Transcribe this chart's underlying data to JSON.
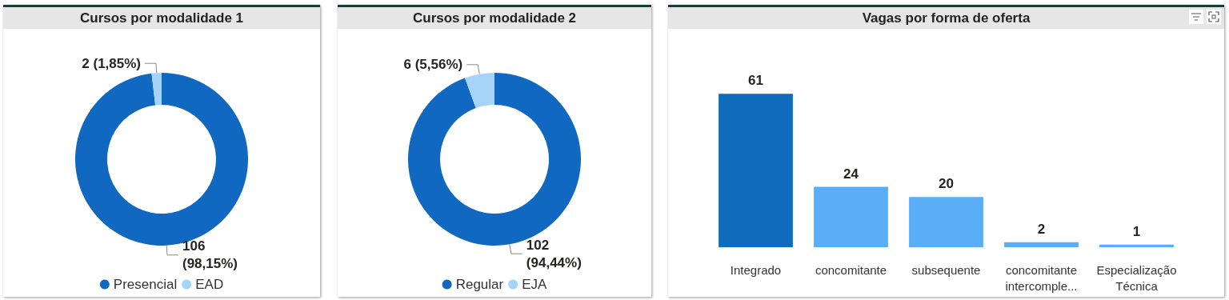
{
  "chart_data": [
    {
      "type": "donut",
      "title": "Cursos por modalidade 1",
      "categories": [
        "Presencial",
        "EAD"
      ],
      "values": [
        106,
        2
      ],
      "colors": [
        "#1168c0",
        "#a6d3f8"
      ],
      "value_labels": [
        "106 (98,15%)",
        "2 (1,85%)"
      ],
      "legend": "bottom"
    },
    {
      "type": "donut",
      "title": "Cursos por modalidade 2",
      "categories": [
        "Regular",
        "EJA"
      ],
      "values": [
        102,
        6
      ],
      "colors": [
        "#1168c0",
        "#a6d3f8"
      ],
      "value_labels": [
        "102 (94,44%)",
        "6 (5,56%)"
      ],
      "legend": "bottom"
    },
    {
      "type": "bar",
      "title": "Vagas por forma de oferta",
      "categories": [
        "Integrado",
        "concomitante",
        "subsequente",
        "concomitante intercomple...",
        "Especialização Técnica"
      ],
      "values": [
        61,
        24,
        20,
        2,
        1
      ],
      "colors": [
        "#0f6cbd",
        "#5aaef7",
        "#5aaef7",
        "#5aaef7",
        "#5aaef7"
      ],
      "data_labels": true,
      "legend": false
    }
  ]
}
